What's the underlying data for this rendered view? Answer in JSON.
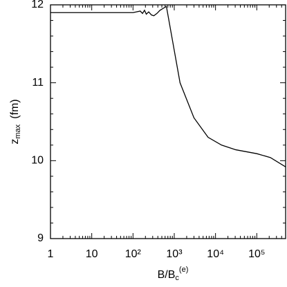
{
  "chart_data": {
    "type": "line",
    "log_x": true,
    "xlabel": {
      "text": "B/B",
      "sub": "c",
      "sup": "(e)"
    },
    "ylabel": {
      "text": "z",
      "sub": "max",
      "unit": "(fm)"
    },
    "xlim": [
      1,
      500000
    ],
    "ylim": [
      9,
      12
    ],
    "xticks": [
      1,
      10,
      {
        "value": 100,
        "label": "10²"
      },
      {
        "value": 1000,
        "label": "10³"
      },
      {
        "value": 10000,
        "label": "10⁴"
      },
      {
        "value": 100000,
        "label": "10⁵"
      }
    ],
    "yticks": [
      9,
      10,
      11,
      12
    ],
    "x": [
      1,
      10,
      100,
      150,
      170,
      190,
      210,
      240,
      280,
      320,
      380,
      450,
      645,
      1380,
      3000,
      6600,
      14000,
      31000,
      100000,
      214000,
      500000
    ],
    "series": [
      {
        "color": "#000000",
        "values": [
          11.9,
          11.9,
          11.9,
          11.92,
          11.89,
          11.93,
          11.88,
          11.91,
          11.87,
          11.86,
          11.89,
          11.93,
          11.98,
          11.0,
          10.55,
          10.3,
          10.2,
          10.14,
          10.09,
          10.04,
          9.92
        ]
      }
    ]
  }
}
